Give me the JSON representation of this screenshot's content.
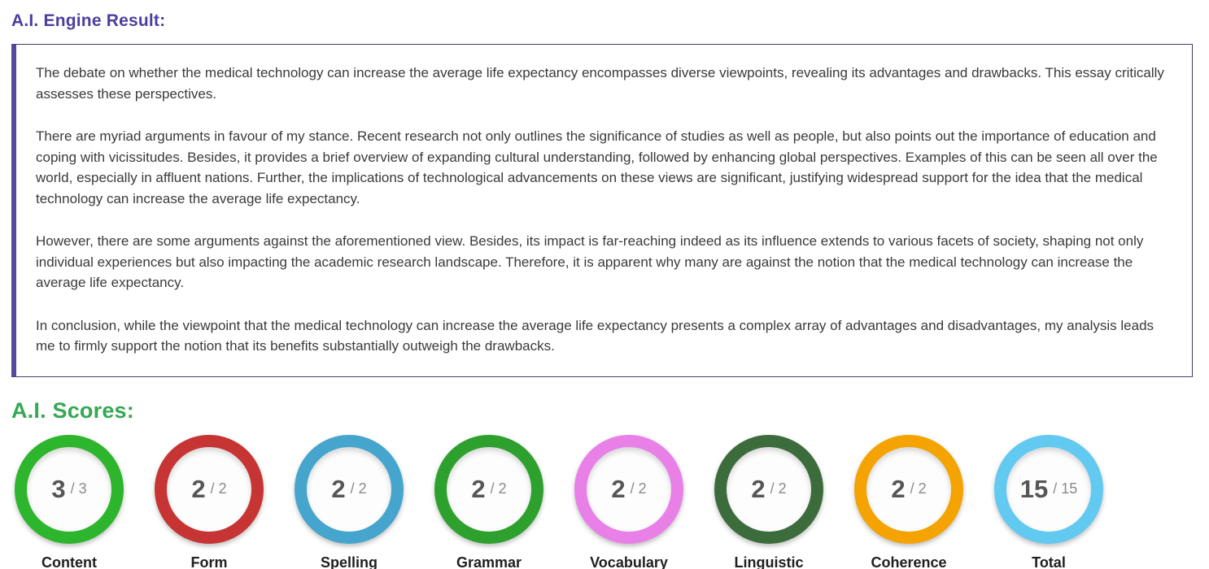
{
  "result_section": {
    "heading": "A.I. Engine Result:"
  },
  "essay": {
    "paragraphs": [
      "The debate on whether the medical technology can increase the average life expectancy encompasses diverse viewpoints, revealing its advantages and drawbacks. This essay critically assesses these perspectives.",
      "There are myriad arguments in favour of my stance. Recent research not only outlines the significance of studies as well as people, but also points out the importance of education and coping with vicissitudes. Besides, it provides a brief overview of expanding cultural understanding, followed by enhancing global perspectives. Examples of this can be seen all over the world, especially in affluent nations. Further, the implications of technological advancements on these views are significant, justifying widespread support for the idea that the medical technology can increase the average life expectancy.",
      "However, there are some arguments against the aforementioned view. Besides, its impact is far-reaching indeed as its influence extends to various facets of society, shaping not only individual experiences but also impacting the academic research landscape. Therefore, it is apparent why many are against the notion that the medical technology can increase the average life expectancy.",
      "In conclusion, while the viewpoint that the medical technology can increase the average life expectancy presents a complex array of advantages and disadvantages, my analysis leads me to firmly support the notion that its benefits substantially outweigh the drawbacks."
    ]
  },
  "scores_section": {
    "heading": "A.I. Scores:",
    "heading_color": "#34a853",
    "items": [
      {
        "label": "Content",
        "value": "3",
        "separator": "/",
        "max": "3",
        "color": "#2db52d"
      },
      {
        "label": "Form",
        "value": "2",
        "separator": "/",
        "max": "2",
        "color": "#c63434"
      },
      {
        "label": "Spelling",
        "value": "2",
        "separator": "/",
        "max": "2",
        "color": "#45a5cd"
      },
      {
        "label": "Grammar",
        "value": "2",
        "separator": "/",
        "max": "2",
        "color": "#2ea02e"
      },
      {
        "label": "Vocabulary",
        "value": "2",
        "separator": "/",
        "max": "2",
        "color": "#e880e8"
      },
      {
        "label": "Linguistic",
        "value": "2",
        "separator": "/",
        "max": "2",
        "color": "#3c6b3c"
      },
      {
        "label": "Coherence",
        "value": "2",
        "separator": "/",
        "max": "2",
        "color": "#f4a300"
      },
      {
        "label": "Total",
        "value": "15",
        "separator": "/",
        "max": "15",
        "color": "#62c9f0"
      }
    ],
    "accent_colors": {
      "heading_purple": "#4a3f9e",
      "box_border": "#3e3e70",
      "box_left_bar": "#52489f"
    }
  }
}
